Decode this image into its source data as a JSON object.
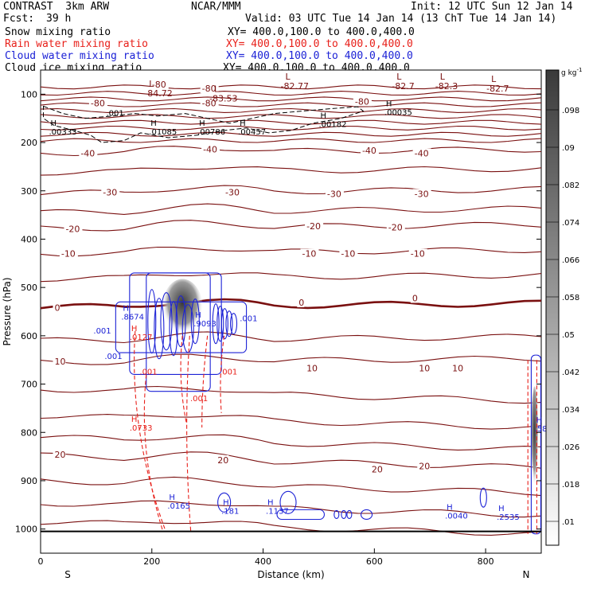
{
  "header": {
    "model": "CONTRAST  3km ARW",
    "center": "NCAR/MMM",
    "init": "Init: 12 UTC Sun 12 Jan 14",
    "fcst_label": "Fcst:",
    "fcst_value": "39 h",
    "valid": "Valid: 03 UTC Tue 14 Jan 14 (13 ChT Tue 14 Jan 14)"
  },
  "fields": [
    {
      "name": "Snow mixing ratio",
      "xy": "XY= 400.0,100.0 to 400.0,400.0",
      "color": "#000000"
    },
    {
      "name": "Rain water mixing ratio",
      "xy": "XY= 400.0,100.0 to 400.0,400.0",
      "color": "#e8201a"
    },
    {
      "name": "Cloud water mixing ratio",
      "xy": "XY= 400.0,100.0 to 400.0,400.0",
      "color": "#1c22d6"
    },
    {
      "name": "Cloud ice mixing ratio",
      "xy": "XY= 400.0,100.0 to 400.0,400.0",
      "color": "#000000"
    }
  ],
  "chart_data": {
    "type": "cross-section",
    "xlabel": "Distance (km)",
    "ylabel": "Pressure (hPa)",
    "x_ticks": [
      0,
      200,
      400,
      600,
      800
    ],
    "xlim": [
      0,
      900
    ],
    "y_ticks": [
      100,
      200,
      300,
      400,
      500,
      600,
      700,
      800,
      900,
      1000
    ],
    "ylim": [
      1050,
      50
    ],
    "end_labels": {
      "left": "S",
      "right": "N"
    },
    "colorbar": {
      "unit": "g kg",
      "unit_exp": "-1",
      "ticks": [
        ".098",
        ".09",
        ".082",
        ".074",
        ".066",
        ".058",
        ".05",
        ".042",
        ".034",
        ".026",
        ".018",
        ".01"
      ],
      "color_low": "#ffffff",
      "color_high": "#3a3a3a"
    },
    "temperature_labels": [
      {
        "x": 200,
        "p": 80,
        "text": "-80"
      },
      {
        "x": 290,
        "p": 88,
        "text": "-80"
      },
      {
        "x": 90,
        "p": 118,
        "text": "-80"
      },
      {
        "x": 290,
        "p": 118,
        "text": "-80"
      },
      {
        "x": 565,
        "p": 115,
        "text": "-80"
      },
      {
        "x": 72,
        "p": 222,
        "text": "-40"
      },
      {
        "x": 292,
        "p": 214,
        "text": "-40"
      },
      {
        "x": 578,
        "p": 216,
        "text": "-40"
      },
      {
        "x": 672,
        "p": 222,
        "text": "-40"
      },
      {
        "x": 112,
        "p": 303,
        "text": "-30"
      },
      {
        "x": 332,
        "p": 303,
        "text": "-30"
      },
      {
        "x": 515,
        "p": 306,
        "text": "-30"
      },
      {
        "x": 672,
        "p": 306,
        "text": "-30"
      },
      {
        "x": 45,
        "p": 379,
        "text": "-20"
      },
      {
        "x": 478,
        "p": 373,
        "text": "-20"
      },
      {
        "x": 625,
        "p": 375,
        "text": "-20"
      },
      {
        "x": 37,
        "p": 430,
        "text": "-10"
      },
      {
        "x": 470,
        "p": 430,
        "text": "-10"
      },
      {
        "x": 540,
        "p": 430,
        "text": "-10"
      },
      {
        "x": 665,
        "p": 430,
        "text": "-10"
      },
      {
        "x": 25,
        "p": 542,
        "text": "0"
      },
      {
        "x": 464,
        "p": 531,
        "text": "0"
      },
      {
        "x": 668,
        "p": 522,
        "text": "0"
      },
      {
        "x": 25,
        "p": 653,
        "text": "10"
      },
      {
        "x": 478,
        "p": 667,
        "text": "10"
      },
      {
        "x": 680,
        "p": 667,
        "text": "10"
      },
      {
        "x": 740,
        "p": 667,
        "text": "10"
      },
      {
        "x": 25,
        "p": 846,
        "text": "20"
      },
      {
        "x": 318,
        "p": 857,
        "text": "20"
      },
      {
        "x": 595,
        "p": 876,
        "text": "20"
      },
      {
        "x": 680,
        "p": 870,
        "text": "20"
      }
    ],
    "min_labels": [
      {
        "x": 195,
        "p": 85,
        "sym": "L",
        "value": "-84.72"
      },
      {
        "x": 312,
        "p": 95,
        "sym": "L",
        "value": "-83.53"
      },
      {
        "x": 440,
        "p": 70,
        "sym": "L",
        "value": "-82.77"
      },
      {
        "x": 640,
        "p": 70,
        "sym": "L",
        "value": "-82.7"
      },
      {
        "x": 718,
        "p": 70,
        "sym": "L",
        "value": "-82.3"
      },
      {
        "x": 810,
        "p": 75,
        "sym": "L",
        "value": "-82.7"
      }
    ],
    "ice_max_labels": [
      {
        "x": 15,
        "p": 165,
        "value": ".00333"
      },
      {
        "x": 195,
        "p": 165,
        "value": ".01085"
      },
      {
        "x": 282,
        "p": 165,
        "value": ".00786"
      },
      {
        "x": 355,
        "p": 165,
        "value": ".00457"
      },
      {
        "x": 500,
        "p": 150,
        "value": ".00182"
      },
      {
        "x": 618,
        "p": 125,
        "value": ".00035"
      }
    ],
    "ice_other_labels": [
      {
        "x": 118,
        "p": 145,
        "text": ".001"
      }
    ],
    "cloud_water_max_labels": [
      {
        "x": 145,
        "p": 548,
        "value": ".8674"
      },
      {
        "x": 275,
        "p": 562,
        "value": ".9093"
      },
      {
        "x": 228,
        "p": 940,
        "value": ".0165"
      },
      {
        "x": 325,
        "p": 950,
        "value": ".181"
      },
      {
        "x": 405,
        "p": 950,
        "value": ".1137"
      },
      {
        "x": 727,
        "p": 960,
        "value": ".0040"
      },
      {
        "x": 820,
        "p": 963,
        "value": ".2535"
      },
      {
        "x": 888,
        "p": 780,
        "value": ".58"
      }
    ],
    "cloud_water_other_labels": [
      {
        "x": 95,
        "p": 595,
        "text": ".001"
      },
      {
        "x": 358,
        "p": 570,
        "text": ".001"
      },
      {
        "x": 115,
        "p": 648,
        "text": ".001"
      }
    ],
    "rain_max_labels": [
      {
        "x": 160,
        "p": 590,
        "value": ".0127"
      },
      {
        "x": 160,
        "p": 778,
        "value": ".0733"
      }
    ],
    "rain_other_labels": [
      {
        "x": 178,
        "p": 680,
        "text": ".001"
      },
      {
        "x": 269,
        "p": 735,
        "text": ".001"
      },
      {
        "x": 322,
        "p": 680,
        "text": ".001"
      }
    ]
  }
}
